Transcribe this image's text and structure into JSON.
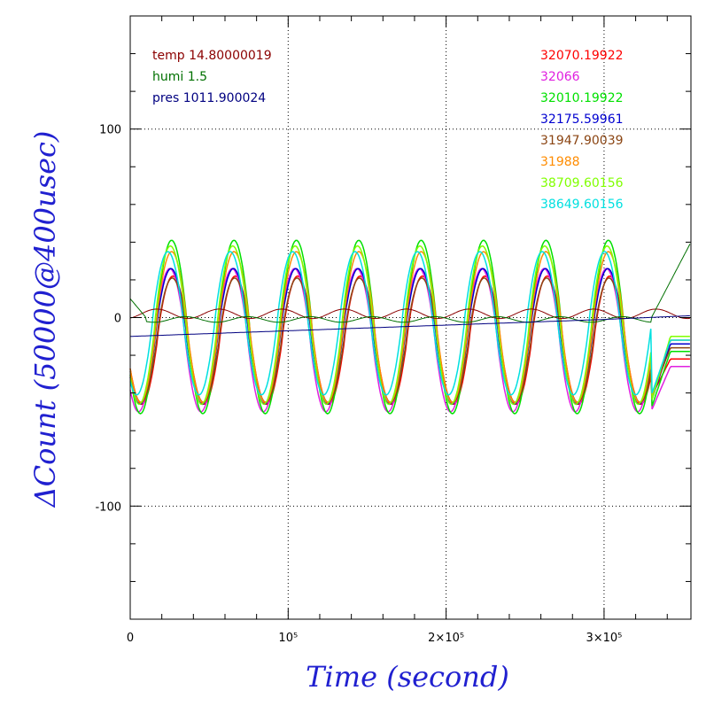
{
  "chart_data": {
    "type": "line",
    "xlabel": "Time (second)",
    "ylabel": "ΔCount (50000@400usec)",
    "xlim": [
      0,
      355000
    ],
    "ylim": [
      -160,
      160
    ],
    "x_ticks": [
      {
        "value": 0,
        "label": "0"
      },
      {
        "value": 100000,
        "label": "10⁵"
      },
      {
        "value": 200000,
        "label": "2×10⁵"
      },
      {
        "value": 300000,
        "label": "3×10⁵"
      }
    ],
    "y_ticks": [
      {
        "value": 100,
        "label": "100"
      },
      {
        "value": 0,
        "label": "0"
      },
      {
        "value": -100,
        "label": "-100"
      }
    ],
    "x_minor_step": 20000,
    "y_minor_step": 20,
    "grid": true,
    "legend_left": [
      {
        "label": "temp 14.80000019",
        "color": "#8b0000"
      },
      {
        "label": "humi 1.5",
        "color": "#007000"
      },
      {
        "label": "pres 1011.900024",
        "color": "#000080"
      }
    ],
    "series": [
      {
        "name": "32070.19922",
        "color": "#ff0000",
        "amp": 34,
        "offset": -12,
        "period": 39500,
        "phase": 0.0,
        "end": -22
      },
      {
        "name": "32066",
        "color": "#e020e0",
        "amp": 38,
        "offset": -12,
        "period": 39500,
        "phase": 0.05,
        "end": -26
      },
      {
        "name": "32010.19922",
        "color": "#00e000",
        "amp": 46,
        "offset": -5,
        "period": 39500,
        "phase": 0.02,
        "end": -18
      },
      {
        "name": "32175.59961",
        "color": "#0000d0",
        "amp": 36,
        "offset": -10,
        "period": 39500,
        "phase": 0.03,
        "end": -14
      },
      {
        "name": "31947.90039",
        "color": "#8b4513",
        "amp": 33,
        "offset": -12,
        "period": 39500,
        "phase": 0.01,
        "end": -16
      },
      {
        "name": "31988",
        "color": "#ff8c00",
        "amp": 40,
        "offset": -5,
        "period": 39500,
        "phase": 0.02,
        "end": -12
      },
      {
        "name": "38709.60156",
        "color": "#80ff00",
        "amp": 42,
        "offset": -4,
        "period": 39500,
        "phase": 0.04,
        "end": -10
      },
      {
        "name": "38649.60156",
        "color": "#00e0e0",
        "amp": 38,
        "offset": -3,
        "period": 39500,
        "phase": 0.08,
        "end": -12
      }
    ],
    "env_series": [
      {
        "name": "temp",
        "color": "#8b0000",
        "kind": "temp"
      },
      {
        "name": "humi",
        "color": "#007000",
        "kind": "humi"
      },
      {
        "name": "pres",
        "color": "#000080",
        "kind": "pres"
      }
    ]
  }
}
